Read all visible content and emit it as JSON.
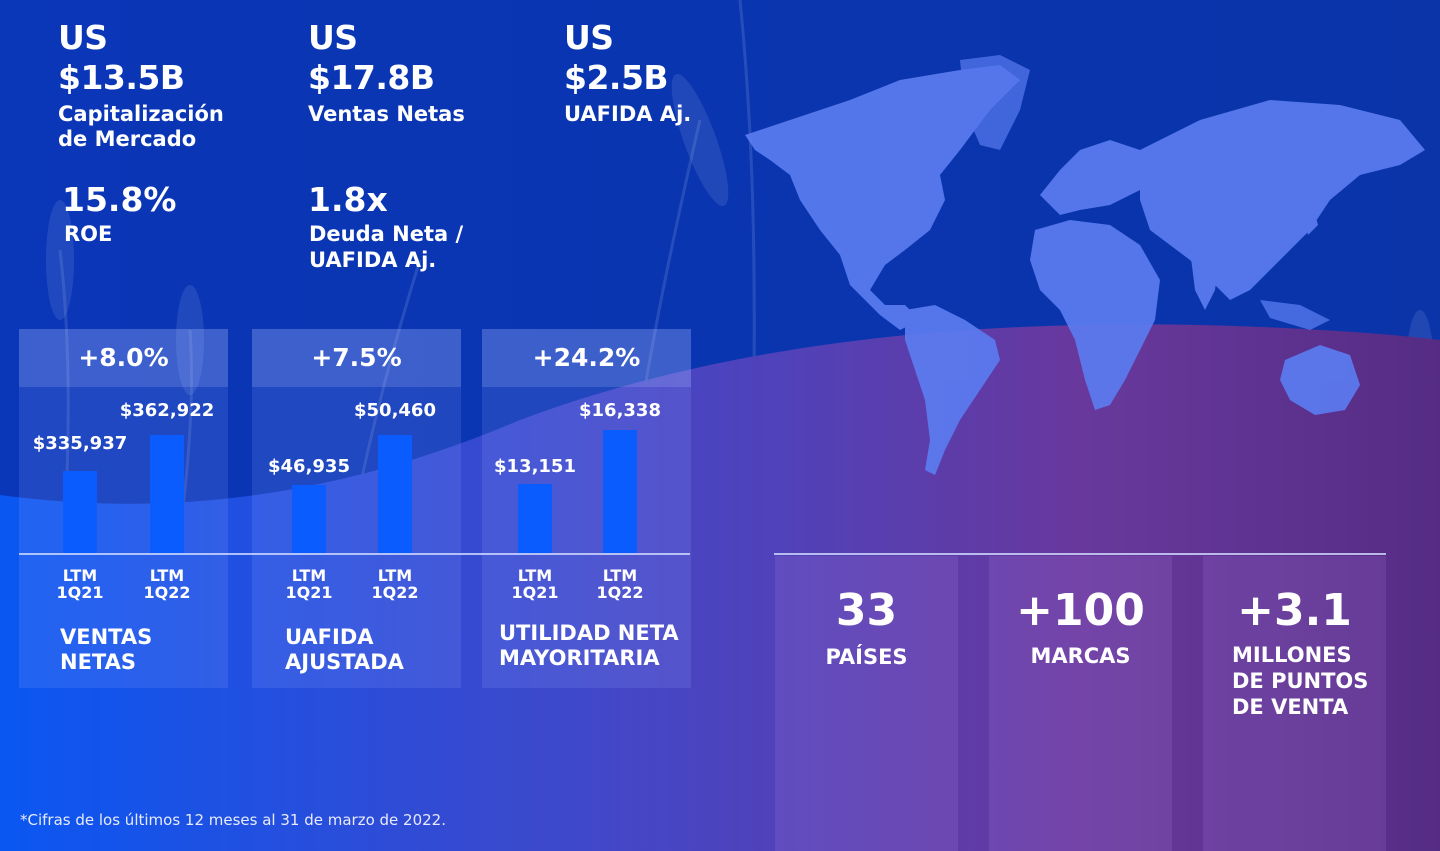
{
  "kpis": {
    "market_cap": {
      "prefix": "US",
      "value": "$13.5B",
      "label_line1": "Capitalización",
      "label_line2": "de Mercado"
    },
    "net_sales": {
      "prefix": "US",
      "value": "$17.8B",
      "label_line1": "Ventas Netas"
    },
    "ebitda": {
      "prefix": "US",
      "value": "$2.5B",
      "label_line1": "UAFIDA Aj."
    },
    "roe": {
      "value": "15.8%",
      "label": "ROE"
    },
    "leverage": {
      "value": "1.8x",
      "label_line1": "Deuda Neta /",
      "label_line2": "UAFIDA Aj."
    }
  },
  "chart_data": [
    {
      "type": "bar",
      "categories": [
        "LTM\n1Q21",
        "LTM\n1Q22"
      ],
      "values": [
        335937,
        362922
      ],
      "value_labels": [
        "$335,937",
        "$362,922"
      ],
      "growth": "+8.0%",
      "metric_line1": "VENTAS",
      "metric_line2": "NETAS"
    },
    {
      "type": "bar",
      "categories": [
        "LTM\n1Q21",
        "LTM\n1Q22"
      ],
      "values": [
        46935,
        50460
      ],
      "value_labels": [
        "$46,935",
        "$50,460"
      ],
      "growth": "+7.5%",
      "metric_line1": "UAFIDA",
      "metric_line2": "AJUSTADA"
    },
    {
      "type": "bar",
      "categories": [
        "LTM\n1Q21",
        "LTM\n1Q22"
      ],
      "values": [
        13151,
        16338
      ],
      "value_labels": [
        "$13,151",
        "$16,338"
      ],
      "growth": "+24.2%",
      "metric_line1": "UTILIDAD NETA",
      "metric_line2": "MAYORITARIA"
    }
  ],
  "stats": [
    {
      "value": "33",
      "label_lines": [
        "PAÍSES"
      ]
    },
    {
      "value": "+100",
      "label_lines": [
        "MARCAS"
      ]
    },
    {
      "value": "+3.1",
      "label_lines": [
        "MILLONES",
        "DE PUNTOS",
        "DE VENTA"
      ]
    }
  ],
  "footnote": "*Cifras de los últimos 12 meses al 31 de marzo de 2022.",
  "colors": {
    "bar": "#0b5cff",
    "bg_top": "#0a35b0",
    "bg_purple": "#6a3a9e",
    "map": "#5b7cf0"
  },
  "icons": {
    "map": "world-map-icon",
    "background": "wheat-field-background"
  }
}
